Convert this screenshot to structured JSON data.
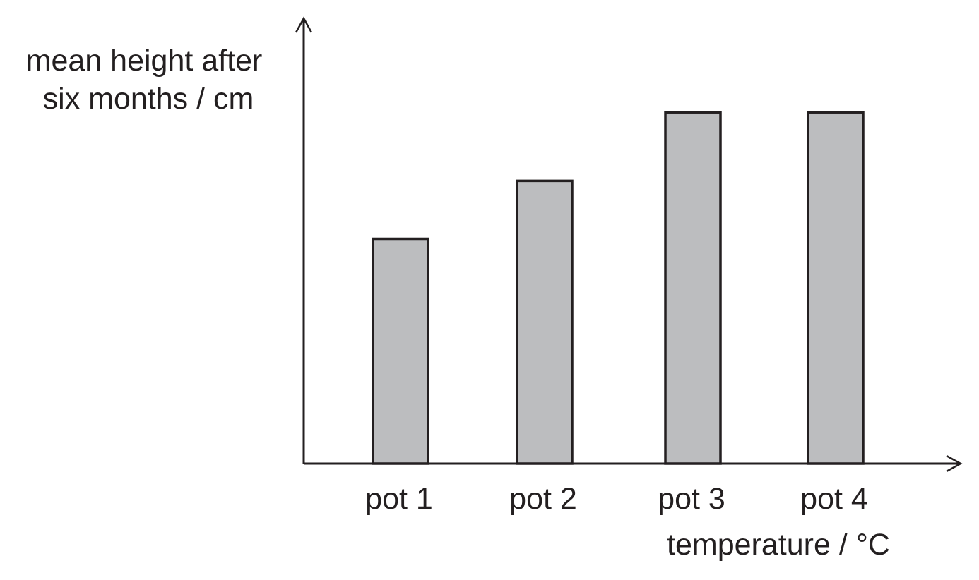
{
  "chart_data": {
    "type": "bar",
    "categories": [
      "pot 1",
      "pot 2",
      "pot 3",
      "pot 4"
    ],
    "values": [
      3.18,
      4.0,
      4.97,
      4.97
    ],
    "ylabel": [
      "mean height after",
      "six months / cm"
    ],
    "xlabel": "temperature / °C",
    "ylim": [
      0,
      6.3
    ],
    "tick_labels_shown": false,
    "grid": false,
    "bar_color": "#bcbdbf",
    "bar_edge_color": "#231f20",
    "axis_color": "#231f20"
  }
}
